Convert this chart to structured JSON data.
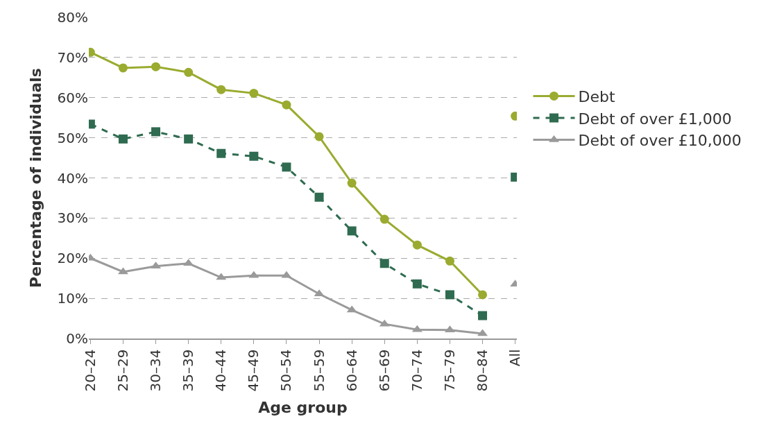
{
  "chart_data": {
    "type": "line",
    "xlabel": "Age group",
    "ylabel": "Percentage of individuals",
    "categories": [
      "20–24",
      "25–29",
      "30–34",
      "35–39",
      "40–44",
      "45–49",
      "50–54",
      "55–59",
      "60–64",
      "65–69",
      "70–74",
      "75–79",
      "80–84",
      "All"
    ],
    "series": [
      {
        "name": "Debt",
        "color": "#9aab2f",
        "marker": "circle",
        "line_style": "solid",
        "values": [
          71.3,
          67.4,
          67.7,
          66.3,
          62.0,
          61.1,
          58.2,
          50.3,
          38.7,
          29.7,
          23.3,
          19.3,
          10.9,
          null
        ]
      },
      {
        "name": "Debt of over £1,000",
        "color": "#2f6b50",
        "marker": "square",
        "line_style": "dashed",
        "values": [
          53.4,
          49.7,
          51.5,
          49.7,
          46.1,
          45.4,
          42.7,
          35.2,
          26.8,
          18.7,
          13.6,
          10.9,
          5.7,
          null
        ]
      },
      {
        "name": "Debt of over £10,000",
        "color": "#9a9a9a",
        "marker": "triangle",
        "line_style": "solid",
        "values": [
          20.0,
          16.6,
          18.0,
          18.7,
          15.2,
          15.7,
          15.7,
          11.1,
          7.1,
          3.6,
          2.2,
          2.1,
          1.2,
          null
        ]
      },
      {
        "type": "scatter",
        "color": "#9aab2f",
        "marker": "circle",
        "values": [
          null,
          null,
          null,
          null,
          null,
          null,
          null,
          null,
          null,
          null,
          null,
          null,
          null,
          55.4
        ]
      },
      {
        "type": "scatter",
        "color": "#2f6b50",
        "marker": "square",
        "values": [
          null,
          null,
          null,
          null,
          null,
          null,
          null,
          null,
          null,
          null,
          null,
          null,
          null,
          40.2
        ]
      },
      {
        "type": "scatter",
        "color": "#9a9a9a",
        "marker": "triangle",
        "values": [
          null,
          null,
          null,
          null,
          null,
          null,
          null,
          null,
          null,
          null,
          null,
          null,
          null,
          13.5
        ]
      }
    ],
    "ylim": [
      0,
      80
    ],
    "yticks": [
      {
        "value": 0,
        "label": "0%"
      },
      {
        "value": 10,
        "label": "10%"
      },
      {
        "value": 20,
        "label": "20%"
      },
      {
        "value": 30,
        "label": "30%"
      },
      {
        "value": 40,
        "label": "40%"
      },
      {
        "value": 50,
        "label": "50%"
      },
      {
        "value": 60,
        "label": "60%"
      },
      {
        "value": 70,
        "label": "70%"
      },
      {
        "value": 80,
        "label": "80%"
      }
    ],
    "grid": "y",
    "legend": "right"
  }
}
